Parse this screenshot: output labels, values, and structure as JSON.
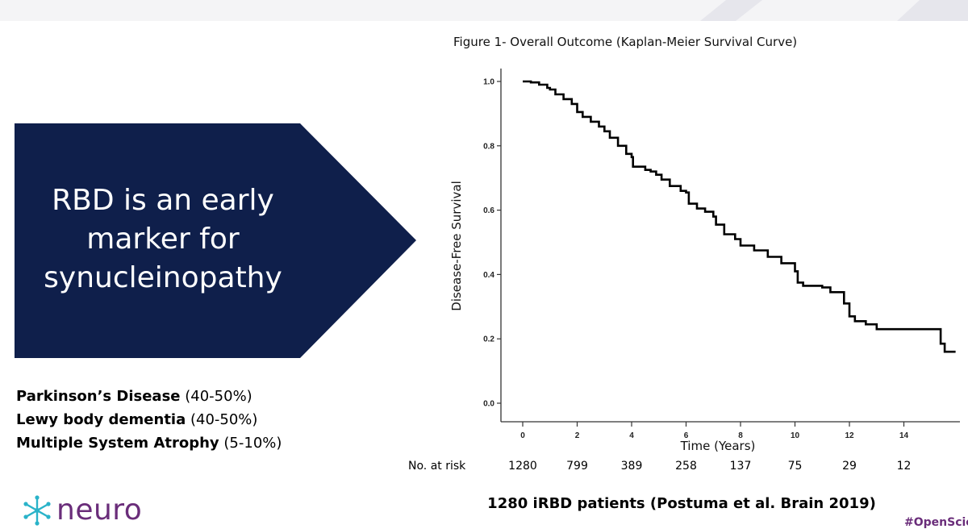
{
  "slide": {
    "callout": {
      "lines": [
        "RBD is an early",
        "marker for",
        "synucleinopathy"
      ],
      "fill_color": "#0f1f4b"
    },
    "conditions": [
      {
        "name": "Parkinson’s Disease",
        "pct": "(40-50%)"
      },
      {
        "name": "Lewy body dementia",
        "pct": "(40-50%)"
      },
      {
        "name": "Multiple System Atrophy",
        "pct": "(5-10%)"
      }
    ],
    "logo": {
      "word": "neuro",
      "icon": "snowflake-icon",
      "color": "#6a2d7a"
    },
    "citation": "1280 iRBD patients (Postuma et al. Brain 2019)",
    "hashtag": "#OpenScience"
  },
  "chart_data": {
    "type": "line",
    "title": "Figure  1- Overall Outcome (Kaplan-Meier Survival Curve)",
    "xlabel": "Time (Years)",
    "ylabel": "Disease-Free Survival",
    "xlim": [
      0,
      16
    ],
    "ylim": [
      0,
      1.0
    ],
    "x_ticks": [
      0,
      2,
      4,
      6,
      8,
      10,
      12,
      14
    ],
    "y_ticks": [
      "0.0",
      "0.2",
      "0.4",
      "0.6",
      "0.8",
      "1.0"
    ],
    "series": [
      {
        "values": [
          [
            0,
            1.0
          ],
          [
            0.3,
            0.997
          ],
          [
            0.6,
            0.99
          ],
          [
            0.9,
            0.98
          ],
          [
            1.0,
            0.975
          ],
          [
            1.2,
            0.96
          ],
          [
            1.5,
            0.945
          ],
          [
            1.8,
            0.93
          ],
          [
            2.0,
            0.905
          ],
          [
            2.2,
            0.89
          ],
          [
            2.5,
            0.875
          ],
          [
            2.8,
            0.86
          ],
          [
            3.0,
            0.845
          ],
          [
            3.2,
            0.825
          ],
          [
            3.5,
            0.8
          ],
          [
            3.8,
            0.775
          ],
          [
            4.0,
            0.765
          ],
          [
            4.05,
            0.735
          ],
          [
            4.5,
            0.725
          ],
          [
            4.7,
            0.72
          ],
          [
            4.9,
            0.71
          ],
          [
            5.1,
            0.695
          ],
          [
            5.4,
            0.675
          ],
          [
            5.8,
            0.66
          ],
          [
            6.0,
            0.655
          ],
          [
            6.1,
            0.62
          ],
          [
            6.4,
            0.605
          ],
          [
            6.7,
            0.595
          ],
          [
            7.0,
            0.58
          ],
          [
            7.1,
            0.555
          ],
          [
            7.4,
            0.525
          ],
          [
            7.8,
            0.51
          ],
          [
            8.0,
            0.49
          ],
          [
            8.5,
            0.475
          ],
          [
            9.0,
            0.455
          ],
          [
            9.5,
            0.435
          ],
          [
            10.0,
            0.41
          ],
          [
            10.1,
            0.375
          ],
          [
            10.3,
            0.365
          ],
          [
            11.0,
            0.36
          ],
          [
            11.3,
            0.345
          ],
          [
            11.8,
            0.31
          ],
          [
            12.0,
            0.27
          ],
          [
            12.2,
            0.255
          ],
          [
            12.6,
            0.245
          ],
          [
            13.0,
            0.23
          ],
          [
            15.3,
            0.23
          ],
          [
            15.35,
            0.185
          ],
          [
            15.5,
            0.16
          ],
          [
            15.9,
            0.16
          ]
        ]
      }
    ],
    "at_risk": {
      "label": "No. at risk",
      "x": [
        0,
        2,
        4,
        6,
        8,
        10,
        12,
        14
      ],
      "values": [
        "1280",
        "799",
        "389",
        "258",
        "137",
        "75",
        "29",
        "12"
      ]
    }
  }
}
